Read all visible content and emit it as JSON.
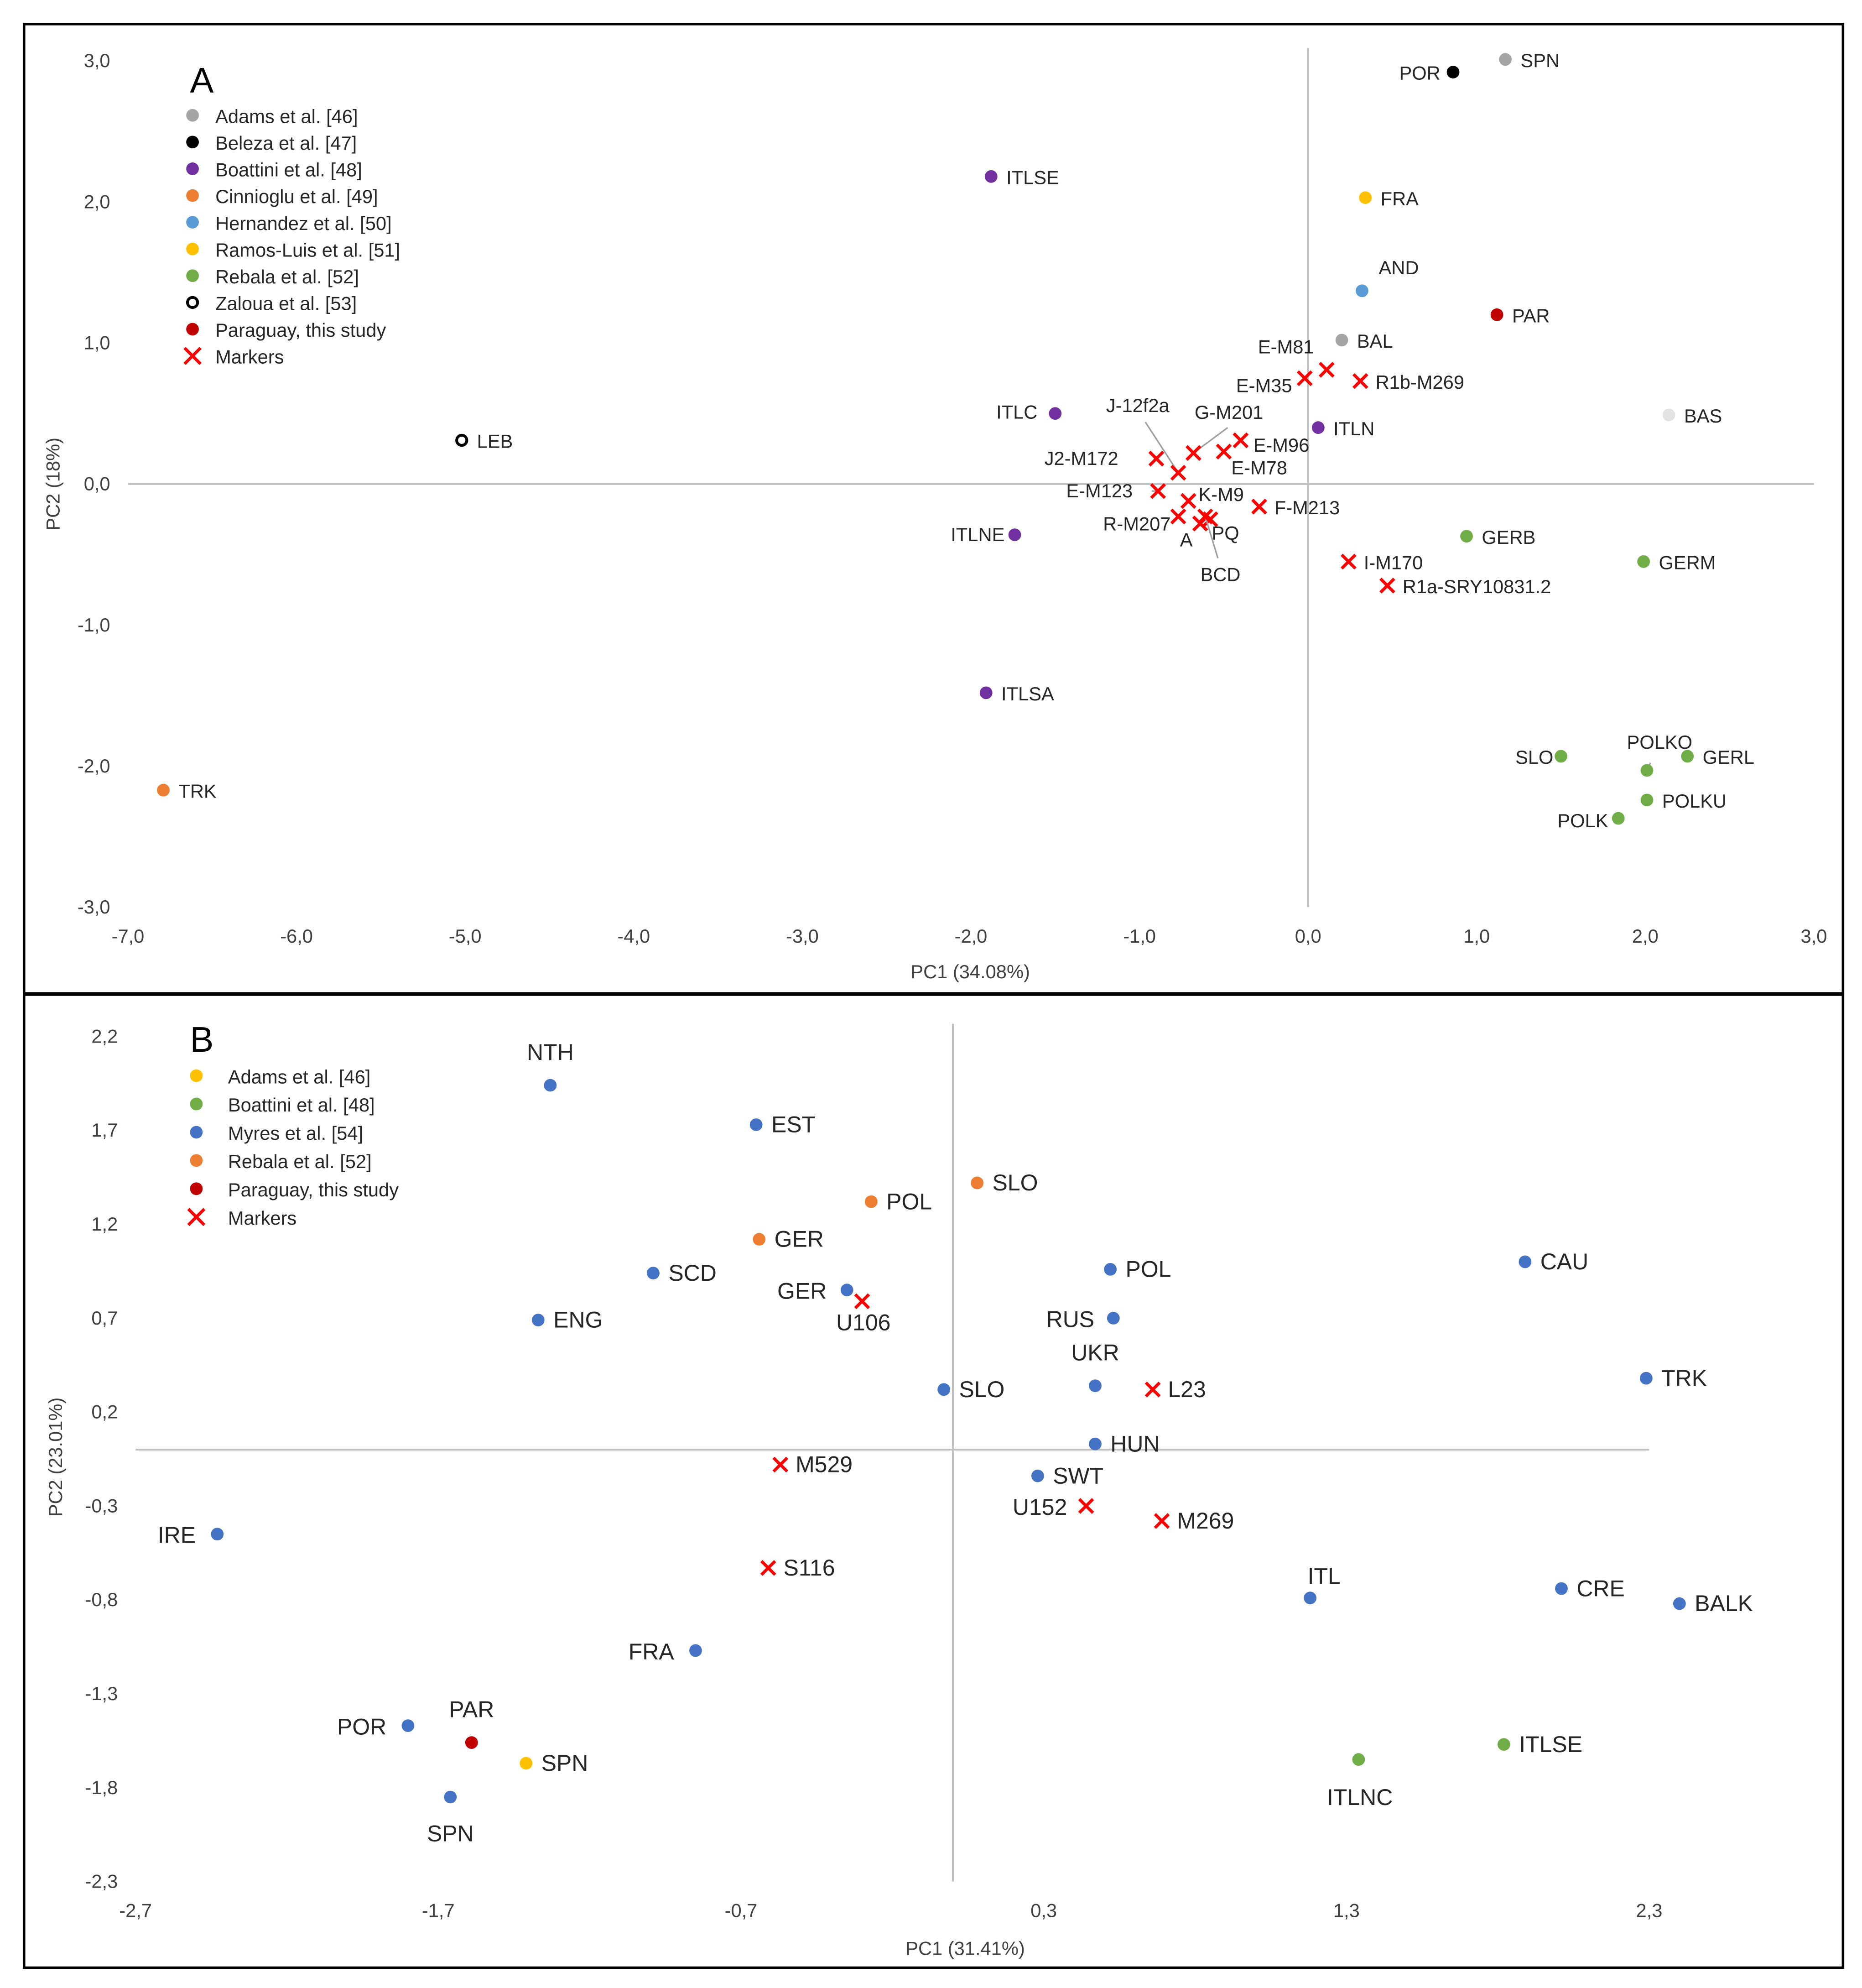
{
  "chart_data": [
    {
      "type": "scatter",
      "panel": "A",
      "xlabel": "PC1 (34.08%)",
      "ylabel": "PC2 (18%)",
      "xlim": [
        -7,
        3
      ],
      "ylim": [
        -3,
        3
      ],
      "xticks": [
        "-7,0",
        "-6,0",
        "-5,0",
        "-4,0",
        "-3,0",
        "-2,0",
        "-1,0",
        "0,0",
        "1,0",
        "2,0",
        "3,0"
      ],
      "yticks": [
        "3,0",
        "2,0",
        "1,0",
        "0,0",
        "-1,0",
        "-2,0",
        "-3,0"
      ],
      "legend_position": "top-left",
      "legend": [
        {
          "name": "Adams et al. [46]",
          "color": "#a5a5a5",
          "shape": "dot"
        },
        {
          "name": "Beleza et al. [47]",
          "color": "#000000",
          "shape": "dot"
        },
        {
          "name": "Boattini et al. [48]",
          "color": "#7030a0",
          "shape": "dot"
        },
        {
          "name": "Cinnioglu et al. [49]",
          "color": "#ed7d31",
          "shape": "dot"
        },
        {
          "name": "Hernandez et al. [50]",
          "color": "#5b9bd5",
          "shape": "dot"
        },
        {
          "name": "Ramos-Luis et al. [51]",
          "color": "#ffc000",
          "shape": "dot"
        },
        {
          "name": "Rebala et al. [52]",
          "color": "#70ad47",
          "shape": "dot"
        },
        {
          "name": "Zaloua et al. [53]",
          "color": "#000000",
          "shape": "ring"
        },
        {
          "name": "Paraguay, this study",
          "color": "#c00000",
          "shape": "dot"
        },
        {
          "name": "Markers",
          "color": "#ff0000",
          "shape": "cross"
        }
      ],
      "points": [
        {
          "label": "SPN",
          "x": 1.17,
          "y": 3.01,
          "group": 0
        },
        {
          "label": "POR",
          "x": 0.86,
          "y": 2.92,
          "group": 1
        },
        {
          "label": "ITLSE",
          "x": -1.88,
          "y": 2.18,
          "group": 2
        },
        {
          "label": "FRA",
          "x": 0.34,
          "y": 2.03,
          "group": 5
        },
        {
          "label": "AND",
          "x": 0.32,
          "y": 1.37,
          "group": 4
        },
        {
          "label": "PAR",
          "x": 1.12,
          "y": 1.2,
          "group": 8
        },
        {
          "label": "BAL",
          "x": 0.2,
          "y": 1.02,
          "group": 0
        },
        {
          "label": "BAS",
          "x": 2.14,
          "y": 0.49,
          "group": 0,
          "color": "#e3e3e3"
        },
        {
          "label": "ITLC",
          "x": -1.5,
          "y": 0.5,
          "group": 2
        },
        {
          "label": "ITLN",
          "x": 0.06,
          "y": 0.4,
          "group": 2
        },
        {
          "label": "LEB",
          "x": -5.02,
          "y": 0.31,
          "group": 7
        },
        {
          "label": "ITLNE",
          "x": -1.74,
          "y": -0.36,
          "group": 2
        },
        {
          "label": "GERB",
          "x": 0.94,
          "y": -0.37,
          "group": 6
        },
        {
          "label": "GERM",
          "x": 1.99,
          "y": -0.55,
          "group": 6
        },
        {
          "label": "ITLSA",
          "x": -1.91,
          "y": -1.48,
          "group": 2
        },
        {
          "label": "TRK",
          "x": -6.79,
          "y": -2.17,
          "group": 3
        },
        {
          "label": "SLO",
          "x": 1.5,
          "y": -1.93,
          "group": 6
        },
        {
          "label": "POLKO",
          "x": 2.01,
          "y": -2.03,
          "group": 6
        },
        {
          "label": "GERL",
          "x": 2.25,
          "y": -1.93,
          "group": 6
        },
        {
          "label": "POLKU",
          "x": 2.01,
          "y": -2.24,
          "group": 6
        },
        {
          "label": "POLK",
          "x": 1.84,
          "y": -2.37,
          "group": 6
        },
        {
          "label": "E-M81",
          "x": 0.11,
          "y": 0.81,
          "group": 9
        },
        {
          "label": "E-M35",
          "x": -0.02,
          "y": 0.75,
          "group": 9
        },
        {
          "label": "R1b-M269",
          "x": 0.31,
          "y": 0.73,
          "group": 9
        },
        {
          "label": "E-M96",
          "x": -0.4,
          "y": 0.31,
          "group": 9
        },
        {
          "label": "E-M78",
          "x": -0.5,
          "y": 0.23,
          "group": 9
        },
        {
          "label": "G-M201",
          "x": -0.68,
          "y": 0.22,
          "group": 9
        },
        {
          "label": "J2-M172",
          "x": -0.9,
          "y": 0.18,
          "group": 9
        },
        {
          "label": "J-12f2a",
          "x": -0.77,
          "y": 0.08,
          "group": 9
        },
        {
          "label": "E-M123",
          "x": -0.89,
          "y": -0.05,
          "group": 9
        },
        {
          "label": "K-M9",
          "x": -0.71,
          "y": -0.12,
          "group": 9
        },
        {
          "label": "F-M213",
          "x": -0.29,
          "y": -0.16,
          "group": 9
        },
        {
          "label": "R-M207",
          "x": -0.77,
          "y": -0.23,
          "group": 9
        },
        {
          "label": "A",
          "x": -0.64,
          "y": -0.28,
          "group": 9
        },
        {
          "label": "PQ",
          "x": -0.58,
          "y": -0.25,
          "group": 9
        },
        {
          "label": "BCD",
          "x": -0.61,
          "y": -0.23,
          "group": 9
        },
        {
          "label": "I-M170",
          "x": 0.24,
          "y": -0.55,
          "group": 9
        },
        {
          "label": "R1a-SRY10831.2",
          "x": 0.47,
          "y": -0.72,
          "group": 9
        }
      ]
    },
    {
      "type": "scatter",
      "panel": "B",
      "xlabel": "PC1 (31.41%)",
      "ylabel": "PC2 (23.01%)",
      "xlim": [
        -2.7,
        2.3
      ],
      "ylim": [
        -2.3,
        2.2
      ],
      "xticks": [
        "-2,7",
        "-1,7",
        "-0,7",
        "0,3",
        "1,3",
        "2,3"
      ],
      "yticks": [
        "2,2",
        "1,7",
        "1,2",
        "0,7",
        "0,2",
        "-0,3",
        "-0,8",
        "-1,3",
        "-1,8",
        "-2,3"
      ],
      "legend_position": "top-left",
      "legend": [
        {
          "name": "Adams et al. [46]",
          "color": "#ffc000",
          "shape": "dot"
        },
        {
          "name": "Boattini et al. [48]",
          "color": "#70ad47",
          "shape": "dot"
        },
        {
          "name": "Myres et al. [54]",
          "color": "#4472c4",
          "shape": "dot"
        },
        {
          "name": "Rebala et al. [52]",
          "color": "#ed7d31",
          "shape": "dot"
        },
        {
          "name": "Paraguay, this study",
          "color": "#c00000",
          "shape": "dot"
        },
        {
          "name": "Markers",
          "color": "#ff0000",
          "shape": "cross"
        }
      ],
      "points": [
        {
          "label": "NTH",
          "x": -1.33,
          "y": 1.94,
          "group": 2
        },
        {
          "label": "EST",
          "x": -0.65,
          "y": 1.73,
          "group": 2
        },
        {
          "label": "POL",
          "x": -0.27,
          "y": 1.32,
          "group": 3
        },
        {
          "label": "SLO",
          "x": 0.08,
          "y": 1.42,
          "group": 3
        },
        {
          "label": "GER",
          "x": -0.64,
          "y": 1.12,
          "group": 3
        },
        {
          "label": "SCD",
          "x": -0.99,
          "y": 0.94,
          "group": 2
        },
        {
          "label": "GER",
          "x": -0.35,
          "y": 0.85,
          "group": 2
        },
        {
          "label": "U106",
          "x": -0.3,
          "y": 0.79,
          "group": 5
        },
        {
          "label": "ENG",
          "x": -1.37,
          "y": 0.69,
          "group": 2
        },
        {
          "label": "POL",
          "x": 0.52,
          "y": 0.96,
          "group": 2
        },
        {
          "label": "CAU",
          "x": 1.89,
          "y": 1.0,
          "group": 2
        },
        {
          "label": "RUS",
          "x": 0.53,
          "y": 0.7,
          "group": 2
        },
        {
          "label": "UKR",
          "x": 0.47,
          "y": 0.34,
          "group": 2
        },
        {
          "label": "L23",
          "x": 0.66,
          "y": 0.32,
          "group": 5
        },
        {
          "label": "SLO",
          "x": -0.03,
          "y": 0.32,
          "group": 2
        },
        {
          "label": "TRK",
          "x": 2.29,
          "y": 0.38,
          "group": 2
        },
        {
          "label": "HUN",
          "x": 0.47,
          "y": 0.03,
          "group": 2
        },
        {
          "label": "M529",
          "x": -0.57,
          "y": -0.08,
          "group": 5
        },
        {
          "label": "SWT",
          "x": 0.28,
          "y": -0.14,
          "group": 2
        },
        {
          "label": "U152",
          "x": 0.44,
          "y": -0.3,
          "group": 5
        },
        {
          "label": "M269",
          "x": 0.69,
          "y": -0.38,
          "group": 5
        },
        {
          "label": "IRE",
          "x": -2.43,
          "y": -0.45,
          "group": 2
        },
        {
          "label": "S116",
          "x": -0.61,
          "y": -0.63,
          "group": 5
        },
        {
          "label": "ITL",
          "x": 1.18,
          "y": -0.79,
          "group": 2
        },
        {
          "label": "CRE",
          "x": 2.01,
          "y": -0.74,
          "group": 2
        },
        {
          "label": "BALK",
          "x": 2.4,
          "y": -0.82,
          "group": 2
        },
        {
          "label": "FRA",
          "x": -0.85,
          "y": -1.07,
          "group": 2
        },
        {
          "label": "POR",
          "x": -1.8,
          "y": -1.47,
          "group": 2
        },
        {
          "label": "PAR",
          "x": -1.59,
          "y": -1.56,
          "group": 4
        },
        {
          "label": "SPN",
          "x": -1.41,
          "y": -1.67,
          "group": 0
        },
        {
          "label": "SPN",
          "x": -1.66,
          "y": -1.85,
          "group": 2
        },
        {
          "label": "ITLNC",
          "x": 1.34,
          "y": -1.65,
          "group": 1
        },
        {
          "label": "ITLSE",
          "x": 1.82,
          "y": -1.57,
          "group": 1
        }
      ]
    }
  ]
}
